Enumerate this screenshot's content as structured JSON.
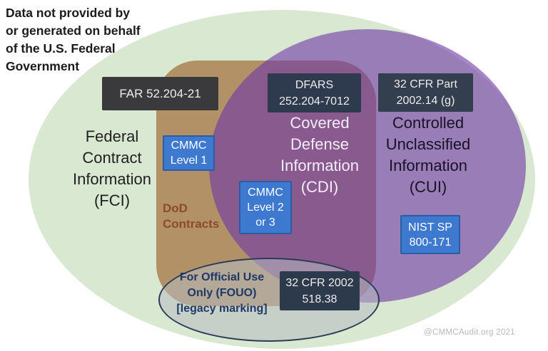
{
  "colors": {
    "page_bg": "#ffffff",
    "fci_fill": "#d9e8d0",
    "dod_fill": "#b29166",
    "cui_fill": "rgba(108,53,166,0.6)",
    "fouo_fill": "rgba(183,188,193,0.55)",
    "fouo_border": "#2a3b55",
    "far_box": "#3a3a3c",
    "dfars_box": "#2e3a4d",
    "cfr_part_box": "#333e4e",
    "cfr_518_box": "#2d3a4b",
    "blue_fill": "#3e79d0",
    "blue_border": "#2b5ca4",
    "box_text": "#ededed",
    "note_text": "#1b1b1b",
    "fci_text": "#212121",
    "cdi_text": "#f3ecfa",
    "cui_text": "#1a1226",
    "dod_text": "#8c4a2d",
    "fouo_text": "#1f3864",
    "watermark_text": "#b9b9b9"
  },
  "note": "Data not provided by\nor generated on behalf\nof the U.S. Federal\nGovernment",
  "regions": {
    "fci": "Federal\nContract\nInformation\n(FCI)",
    "cdi": "Covered\nDefense\nInformation\n(CDI)",
    "cui": "Controlled\nUnclassified\nInformation\n(CUI)",
    "dod": "DoD\nContracts",
    "fouo": "For Official Use\nOnly (FOUO)\n[legacy marking]"
  },
  "boxes": {
    "far": "FAR 52.204-21",
    "dfars": "DFARS\n252.204-7012",
    "cfr_part": "32 CFR Part\n2002.14 (g)",
    "cfr_518": "32 CFR 2002\n518.38",
    "cmmc_l1": "CMMC\nLevel 1",
    "cmmc_l23": "CMMC\nLevel 2\nor 3",
    "nist": "NIST SP\n800-171"
  },
  "watermark": "@CMMCAudit.org 2021"
}
